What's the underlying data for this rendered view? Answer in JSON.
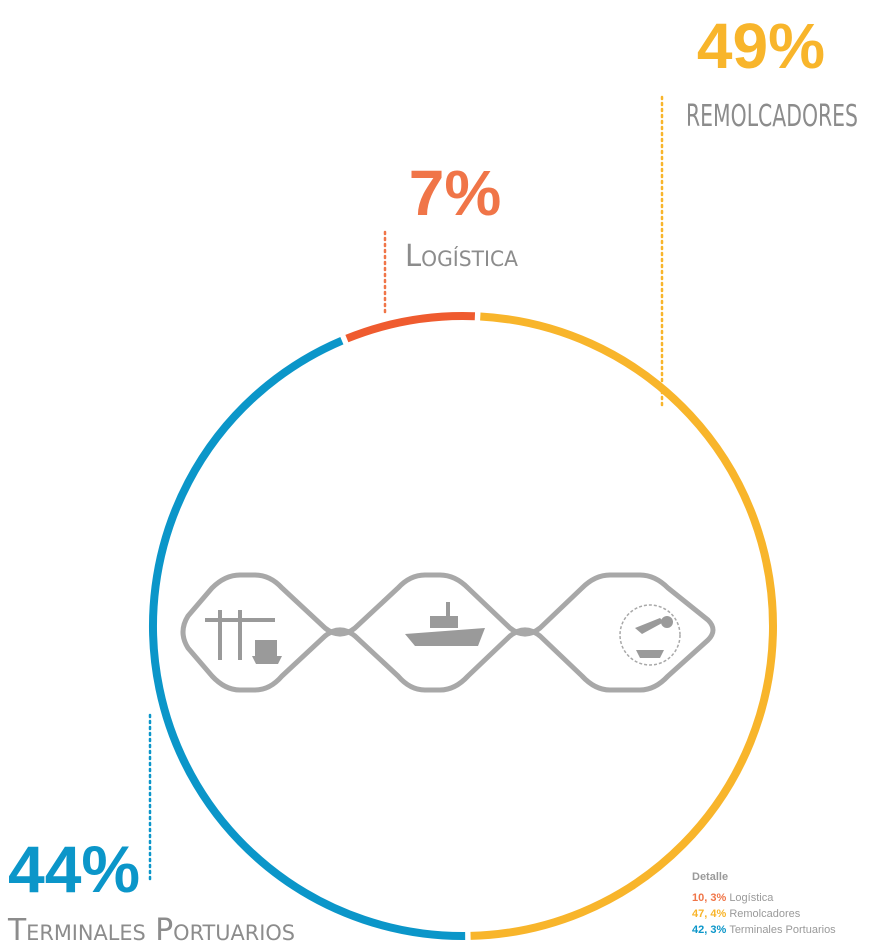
{
  "chart_data": {
    "type": "donut",
    "categories": [
      "Logística",
      "REMOLCADORES",
      "Terminales Portuarios"
    ],
    "values": [
      7,
      49,
      44
    ],
    "value_labels": [
      "7%",
      "49%",
      "44%"
    ],
    "colors": [
      "#ef5b2f",
      "#f8b52b",
      "#0b96c9"
    ],
    "label_colors": [
      "#f07548",
      "#f8b52b",
      "#0b96c9"
    ],
    "detail": {
      "title": "Detalle",
      "items": [
        {
          "value_label": "10, 3%",
          "name": "Logística"
        },
        {
          "value_label": "47, 4%",
          "name": "Remolcadores"
        },
        {
          "value_label": "42, 3%",
          "name": "Terminales Portuarios"
        }
      ]
    }
  }
}
